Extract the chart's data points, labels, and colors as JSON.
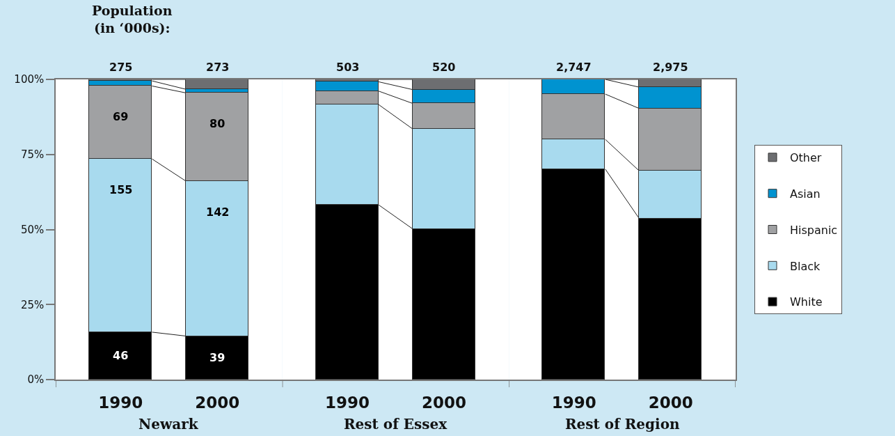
{
  "chart_data": [
    {
      "type": "bar",
      "stacked": true,
      "categories": [
        "1990",
        "2000"
      ],
      "xlabel": "Newark",
      "series": [
        {
          "name": "White",
          "color": "#000000",
          "values": [
            15.8,
            14.5
          ]
        },
        {
          "name": "Black",
          "color": "#a8daee",
          "values": [
            57.7,
            51.6
          ]
        },
        {
          "name": "Hispanic",
          "color": "#a0a1a3",
          "values": [
            24.3,
            29.4
          ]
        },
        {
          "name": "Asian",
          "color": "#0093d0",
          "values": [
            1.7,
            1.2
          ]
        },
        {
          "name": "Other",
          "color": "#6d6e71",
          "values": [
            0.5,
            3.3
          ]
        }
      ],
      "ylim": [
        0,
        100
      ],
      "yticks": [
        {
          "value": 0,
          "label": "0%"
        },
        {
          "value": 25,
          "label": "25%"
        },
        {
          "value": 50,
          "label": "50%"
        },
        {
          "value": 75,
          "label": "75%"
        },
        {
          "value": 100,
          "label": "100%"
        }
      ],
      "annotations": [
        "Population\n(in ‘000s):",
        {
          "text": "275",
          "x": "1990",
          "y": 100
        },
        {
          "text": "273",
          "x": "2000",
          "y": 100
        },
        {
          "text": "46",
          "x": "1990",
          "y": 15.8
        },
        {
          "text": "155",
          "x": "1990",
          "y": 73.5
        },
        {
          "text": "69",
          "x": "1990",
          "y": 97.8
        },
        {
          "text": "39",
          "x": "2000",
          "y": 14.5
        },
        {
          "text": "142",
          "x": "2000",
          "y": 66.1
        },
        {
          "text": "80",
          "x": "2000",
          "y": 95.5
        }
      ],
      "legend": "right"
    },
    {
      "type": "bar",
      "stacked": true,
      "categories": [
        "1990",
        "2000"
      ],
      "xlabel": "Rest of Essex",
      "series": [
        {
          "color": "#000000",
          "values": [
            58.2,
            50.2
          ]
        },
        {
          "color": "#a8daee",
          "values": [
            33.4,
            33.3
          ]
        },
        {
          "color": "#a0a1a3",
          "values": [
            4.5,
            8.5
          ]
        },
        {
          "color": "#0093d0",
          "values": [
            3.1,
            4.6
          ]
        },
        {
          "color": "#6d6e71",
          "values": [
            0.8,
            3.4
          ]
        }
      ],
      "ylim": [
        0,
        100
      ],
      "tick_labels": "x",
      "annotations": [
        {
          "text": "503",
          "x": "1990",
          "y": 100
        },
        {
          "text": "520",
          "x": "2000",
          "y": 100
        }
      ]
    },
    {
      "type": "bar",
      "stacked": true,
      "categories": [
        "1990",
        "2000"
      ],
      "xlabel": "Rest of Region",
      "series": [
        {
          "color": "#000000",
          "values": [
            70.1,
            53.6
          ]
        },
        {
          "color": "#a8daee",
          "values": [
            9.9,
            15.9
          ]
        },
        {
          "color": "#a0a1a3",
          "values": [
            15.1,
            20.8
          ]
        },
        {
          "color": "#0093d0",
          "values": [
            4.9,
            7.1
          ]
        },
        {
          "color": "#6d6e71",
          "values": [
            null,
            2.6
          ]
        }
      ],
      "ylim": [
        0,
        100
      ],
      "tick_labels": "x",
      "annotations": [
        {
          "text": "2,747",
          "x": "1990",
          "y": 100
        },
        {
          "text": "2,975",
          "x": "2000",
          "y": 100
        }
      ]
    }
  ]
}
